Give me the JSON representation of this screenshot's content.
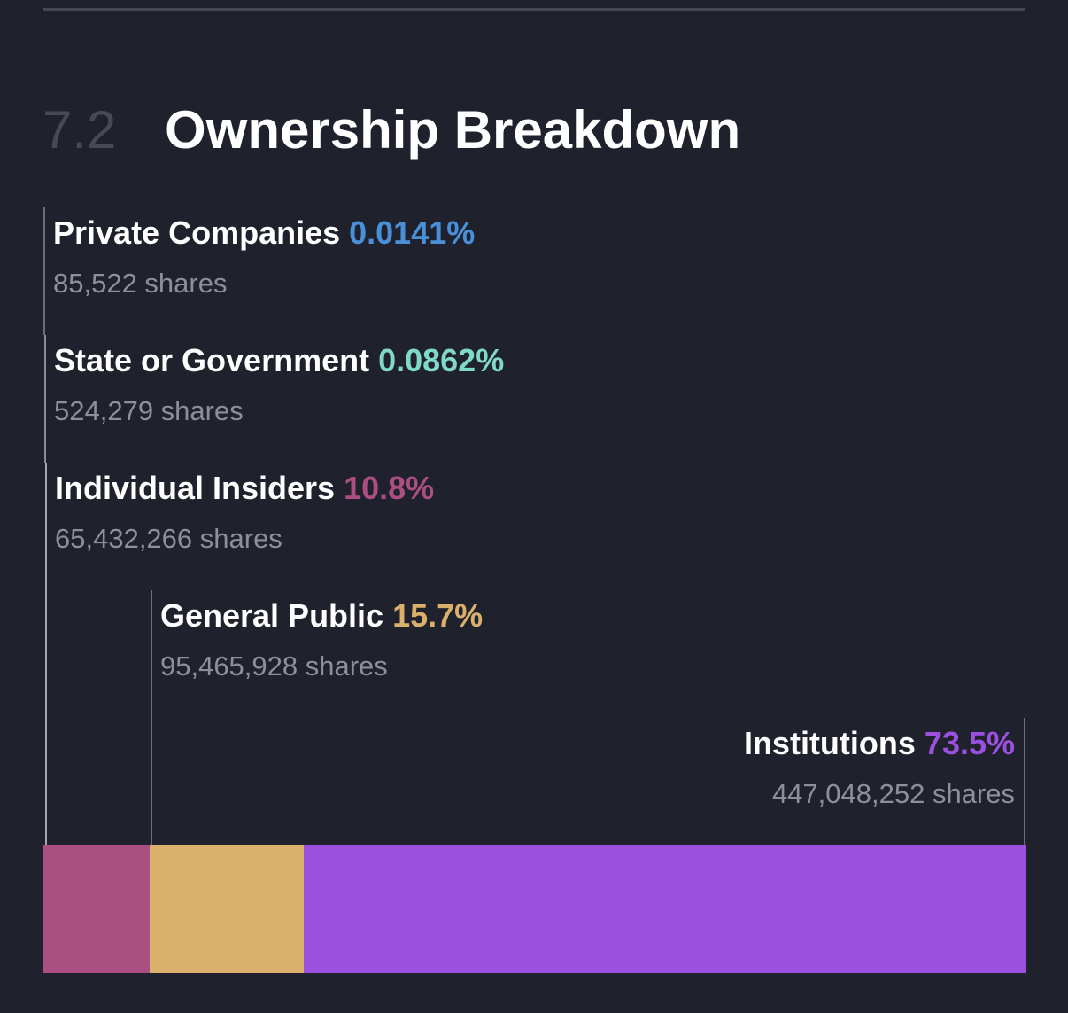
{
  "section": {
    "number": "7.2",
    "title": "Ownership Breakdown"
  },
  "chart_data": {
    "type": "bar",
    "stacked": true,
    "orientation": "horizontal",
    "title": "Ownership Breakdown",
    "categories": [
      "Private Companies",
      "State or Government",
      "Individual Insiders",
      "General Public",
      "Institutions"
    ],
    "values": [
      0.0141,
      0.0862,
      10.8,
      15.7,
      73.5
    ],
    "value_labels": [
      "0.0141%",
      "0.0862%",
      "10.8%",
      "15.7%",
      "73.5%"
    ],
    "shares_labels": [
      "85,522 shares",
      "524,279 shares",
      "65,432,266 shares",
      "95,465,928 shares",
      "447,048,252 shares"
    ],
    "colors": [
      "#4a90d9",
      "#7fd8c8",
      "#ab4f82",
      "#dbb06c",
      "#9b50e0"
    ],
    "xlim": [
      0,
      100
    ]
  }
}
